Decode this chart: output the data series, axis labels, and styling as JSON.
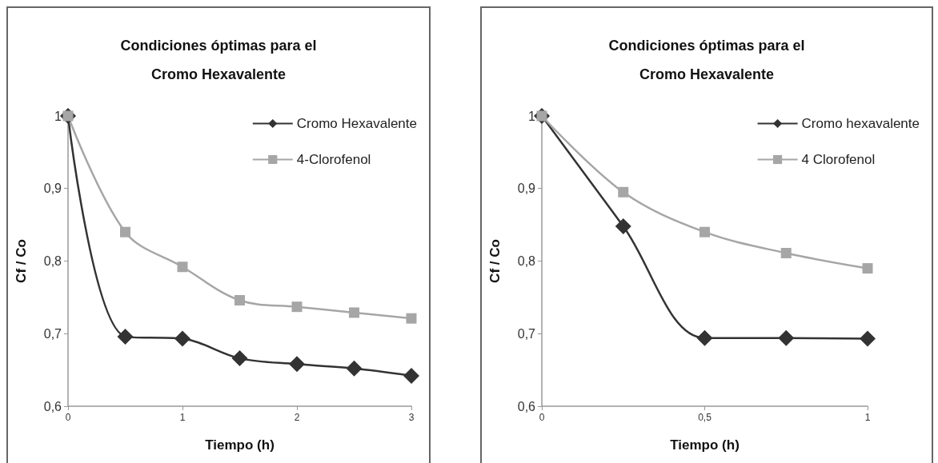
{
  "chart_data": [
    {
      "type": "line",
      "title": "Condiciones óptimas para el\nCromo Hexavalente",
      "xlabel": "Tiempo (h)",
      "ylabel": "Cf / Co",
      "x": [
        0,
        0.5,
        1,
        1.5,
        2,
        2.5,
        3
      ],
      "series": [
        {
          "name": "Cromo Hexavalente",
          "color": "#333333",
          "marker": "diamond",
          "values": [
            1,
            0.696,
            0.693,
            0.666,
            0.658,
            0.652,
            0.642
          ]
        },
        {
          "name": "4-Clorofenol",
          "color": "#a6a6a6",
          "marker": "square",
          "values": [
            1,
            0.84,
            0.792,
            0.746,
            0.737,
            0.729,
            0.721
          ]
        }
      ],
      "xlim": [
        0,
        3
      ],
      "xticks": [
        0,
        1,
        2,
        3
      ],
      "ylim": [
        0.6,
        1
      ],
      "yticks": [
        {
          "value": 0.6,
          "label": "0,6"
        },
        {
          "value": 0.7,
          "label": "0,7"
        },
        {
          "value": 0.8,
          "label": "0,8"
        },
        {
          "value": 0.9,
          "label": "0,9"
        },
        1
      ],
      "grid": false,
      "legend": "top right",
      "line_style": "solid"
    },
    {
      "type": "line",
      "title": "Condiciones óptimas para el\nCromo Hexavalente",
      "xlabel": "Tiempo (h)",
      "ylabel": "Cf / Co",
      "x": [
        0,
        0.25,
        0.5,
        0.75,
        1
      ],
      "series": [
        {
          "name": "Cromo hexavalente",
          "color": "#333333",
          "marker": "diamond",
          "values": [
            1,
            0.848,
            0.694,
            0.694,
            0.693
          ]
        },
        {
          "name": "4 Clorofenol",
          "color": "#a6a6a6",
          "marker": "square",
          "values": [
            1,
            0.895,
            0.84,
            0.811,
            0.79
          ]
        }
      ],
      "xlim": [
        0,
        1
      ],
      "xticks": [
        0,
        {
          "value": 0.5,
          "label": "0,5"
        },
        1
      ],
      "ylim": [
        0.6,
        1
      ],
      "yticks": [
        {
          "value": 0.6,
          "label": "0,6"
        },
        {
          "value": 0.7,
          "label": "0,7"
        },
        {
          "value": 0.8,
          "label": "0,8"
        },
        {
          "value": 0.9,
          "label": "0,9"
        },
        1
      ],
      "grid": false,
      "legend": "top right",
      "line_style": "solid"
    }
  ]
}
